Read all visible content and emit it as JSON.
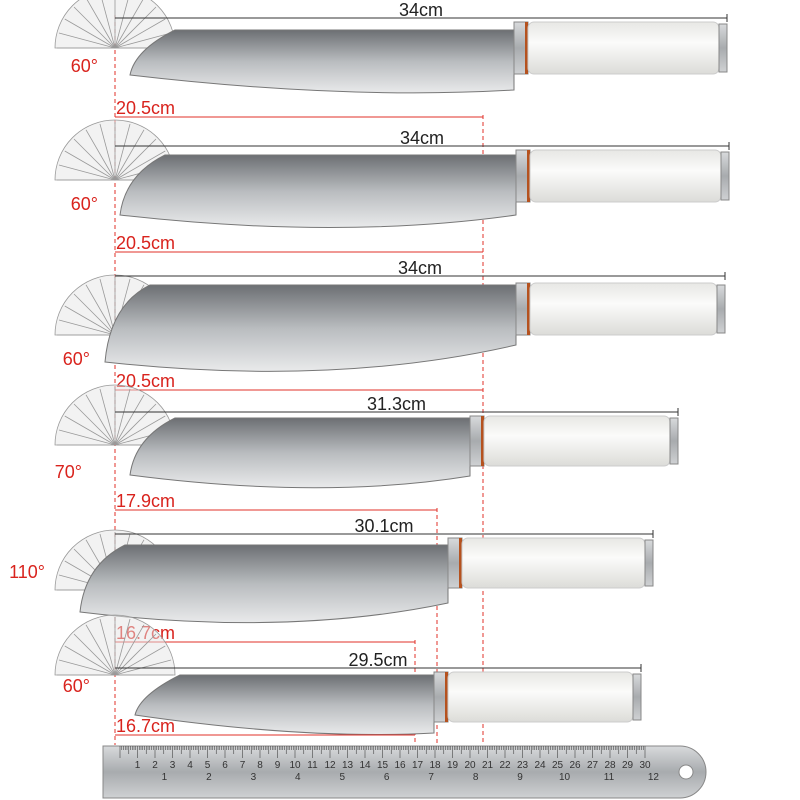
{
  "knives": [
    {
      "total_length": "34cm",
      "blade_length": "20.5cm",
      "angle": "60°"
    },
    {
      "total_length": "34cm",
      "blade_length": "20.5cm",
      "angle": "60°"
    },
    {
      "total_length": "34cm",
      "blade_length": "20.5cm",
      "angle": "60°"
    },
    {
      "total_length": "31.3cm",
      "blade_length": "17.9cm",
      "angle": "70°"
    },
    {
      "total_length": "30.1cm",
      "blade_length": "16.7cm",
      "angle": "110°"
    },
    {
      "total_length": "29.5cm",
      "blade_length": "16.7cm",
      "angle": "60°"
    }
  ],
  "ruler": {
    "cm_labels": [
      "1",
      "2",
      "3",
      "4",
      "5",
      "6",
      "7",
      "8",
      "9",
      "10",
      "11",
      "12",
      "13",
      "14",
      "15",
      "16",
      "17",
      "18",
      "19",
      "20",
      "21",
      "22",
      "23",
      "24",
      "25",
      "26",
      "27",
      "28",
      "29",
      "30"
    ],
    "inch_labels": [
      "1",
      "2",
      "3",
      "4",
      "5",
      "6",
      "7",
      "8",
      "9",
      "10",
      "11",
      "12"
    ]
  }
}
